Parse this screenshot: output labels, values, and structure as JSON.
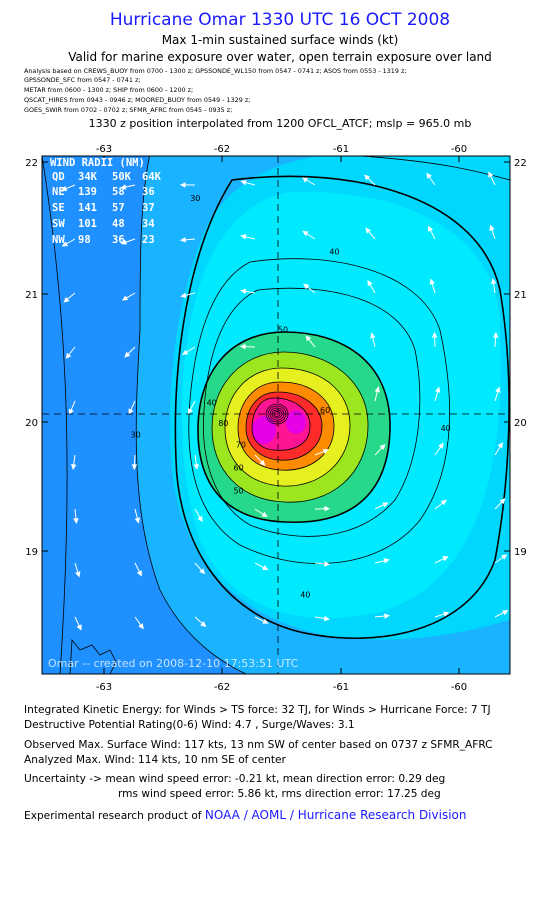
{
  "header": {
    "title": "Hurricane Omar 1330 UTC 16 OCT 2008",
    "subtitle1": "Max 1-min sustained surface winds (kt)",
    "subtitle2": "Valid for marine exposure over water, open terrain exposure over land",
    "analysis_lines": [
      "Analysis based on   CREWS_BUOY from 0700 - 1300 z;   GPSSONDE_WL150 from 0547 - 0741 z;   ASOS from 0553 - 1319 z;",
      "GPSSONDE_SFC from 0547 - 0741 z;",
      "METAR from 0600 - 1300 z;  SHIP from 0600 - 1200 z;",
      "QSCAT_HIRES from 0943 - 0946 z;   MOORED_BUOY from 0549 - 1329 z;",
      "GOES_SWIR from 0702 - 0702 z;  SFMR_AFRC from 0545 - 0935 z;"
    ],
    "interp": "1330 z position interpolated from 1200 OFCL_ATCF; mslp = 965.0 mb"
  },
  "colors": {
    "title": "#1a1aff",
    "ts_blue": "#1e90ff",
    "cyan": "#00e5ff",
    "green": "#26d98a",
    "yellow": "#e6f01e",
    "orange": "#ff8c00",
    "red": "#ff2a2a",
    "magenta": "#e600e6"
  },
  "chart_data": {
    "type": "contour",
    "xticks": [
      "-63",
      "-62",
      "-61",
      "-60"
    ],
    "yticks": [
      "22",
      "21",
      "20",
      "19"
    ],
    "x_range": [
      -63.5,
      -59.5
    ],
    "y_range": [
      18.0,
      22.05
    ],
    "center": {
      "lon": -61.5,
      "lat": 20.05
    },
    "contour_labels": [
      {
        "text": "30",
        "lon": -62.19,
        "lat": 21.7
      },
      {
        "text": "30",
        "lon": -62.7,
        "lat": 19.85
      },
      {
        "text": "40",
        "lon": -61.0,
        "lat": 21.28
      },
      {
        "text": "40",
        "lon": -62.05,
        "lat": 20.1
      },
      {
        "text": "40",
        "lon": -60.05,
        "lat": 19.9
      },
      {
        "text": "40",
        "lon": -61.25,
        "lat": 18.6
      },
      {
        "text": "50",
        "lon": -61.44,
        "lat": 20.67
      },
      {
        "text": "50",
        "lon": -61.82,
        "lat": 19.41
      },
      {
        "text": "60",
        "lon": -61.08,
        "lat": 20.04
      },
      {
        "text": "60",
        "lon": -61.82,
        "lat": 19.59
      },
      {
        "text": "70",
        "lon": -61.8,
        "lat": 19.77
      },
      {
        "text": "80",
        "lon": -61.95,
        "lat": 19.94
      }
    ],
    "wind_radii": {
      "title": "WIND RADII (NM)",
      "header": [
        "QD",
        "34K",
        "50K",
        "64K"
      ],
      "rows": [
        [
          "NE",
          "139",
          "58",
          "36"
        ],
        [
          "SE",
          "141",
          "57",
          "37"
        ],
        [
          "SW",
          "101",
          "48",
          "34"
        ],
        [
          "NW",
          "98",
          "36",
          "23"
        ]
      ]
    },
    "created": "Omar -- created on 2008-12-10 17:53:51 UTC"
  },
  "footer": {
    "ike": "Integrated Kinetic Energy:  for Winds > TS force: 32 TJ,  for Winds > Hurricane Force: 7 TJ",
    "dpr": "Destructive Potential Rating(0-6)   Wind: 4.7 , Surge/Waves: 3.1",
    "obs": "Observed Max. Surface Wind: 117 kts, 13 nm SW of center based on 0737 z SFMR_AFRC",
    "anl": "Analyzed Max. Wind: 114 kts, 10 nm SE of center",
    "unc1": "Uncertainty -> mean wind speed error:  -0.21 kt,   mean direction error: 0.29 deg",
    "unc2": "rms wind speed error: 5.86 kt,   rms direction error: 17.25 deg",
    "credit_prefix": "Experimental research product of",
    "credit_link": "NOAA / AOML / Hurricane Research Division"
  }
}
